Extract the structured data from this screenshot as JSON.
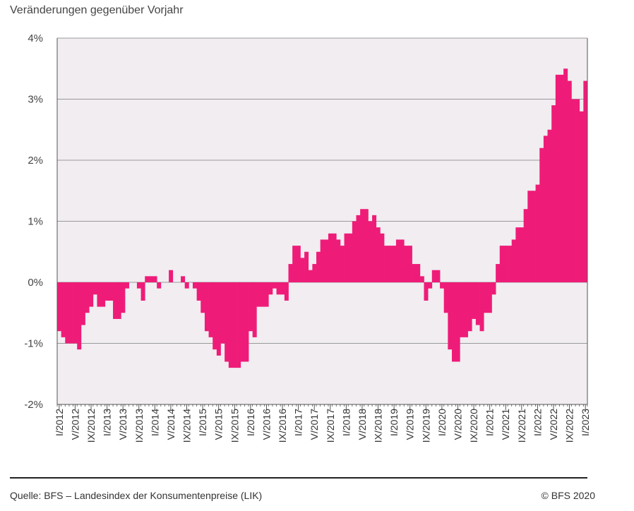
{
  "subtitle": "Veränderungen gegenüber Vorjahr",
  "source": "Quelle: BFS – Landesindex der Konsumentenpreise (LIK)",
  "copyright": "© BFS 2020",
  "colors": {
    "bar": "#EE1C78",
    "plot_background": "#F1EDF1",
    "grid": "#9A9A9A",
    "axis": "#555555"
  },
  "chart_data": {
    "type": "bar",
    "title": "",
    "xlabel": "",
    "ylabel": "Veränderungen gegenüber Vorjahr",
    "ylim": [
      -2,
      4
    ],
    "yticks": [
      {
        "value": 4,
        "label": "4%"
      },
      {
        "value": 3,
        "label": "3%"
      },
      {
        "value": 2,
        "label": "2%"
      },
      {
        "value": 1,
        "label": "1%"
      },
      {
        "value": 0,
        "label": "0%"
      },
      {
        "value": -1,
        "label": "-1%"
      },
      {
        "value": -2,
        "label": "-2%"
      }
    ],
    "grid": true,
    "period_start": "2012-01",
    "x_tick_labels": [
      "I/2012",
      "V/2012",
      "IX/2012",
      "I/2013",
      "V/2013",
      "IX/2013",
      "I/2014",
      "V/2014",
      "IX/2014",
      "I/2015",
      "V/2015",
      "IX/2015",
      "I/2016",
      "V/2016",
      "IX/2016",
      "I/2017",
      "V/2017",
      "IX/2017",
      "I/2018",
      "V/2018",
      "IX/2018",
      "I/2019",
      "V/2019",
      "IX/2019",
      "I/2020",
      "V/2020",
      "IX/2020",
      "I/2021",
      "V/2021",
      "IX/2021",
      "I/2022",
      "V/2022",
      "IX/2022",
      "I/2023"
    ],
    "values": [
      -0.8,
      -0.9,
      -1.0,
      -1.0,
      -1.0,
      -1.1,
      -0.7,
      -0.5,
      -0.4,
      -0.2,
      -0.4,
      -0.4,
      -0.3,
      -0.3,
      -0.6,
      -0.6,
      -0.5,
      -0.1,
      0.0,
      0.0,
      -0.1,
      -0.3,
      0.1,
      0.1,
      0.1,
      -0.1,
      0.0,
      0.0,
      0.2,
      0.0,
      0.0,
      0.1,
      -0.1,
      0.0,
      -0.1,
      -0.3,
      -0.5,
      -0.8,
      -0.9,
      -1.1,
      -1.2,
      -1.0,
      -1.3,
      -1.4,
      -1.4,
      -1.4,
      -1.3,
      -1.3,
      -0.8,
      -0.9,
      -0.4,
      -0.4,
      -0.4,
      -0.2,
      -0.1,
      -0.2,
      -0.2,
      -0.3,
      0.3,
      0.6,
      0.6,
      0.4,
      0.5,
      0.2,
      0.3,
      0.5,
      0.7,
      0.7,
      0.8,
      0.8,
      0.7,
      0.6,
      0.8,
      0.8,
      1.0,
      1.1,
      1.2,
      1.2,
      1.0,
      1.1,
      0.9,
      0.8,
      0.6,
      0.6,
      0.6,
      0.7,
      0.7,
      0.6,
      0.6,
      0.3,
      0.3,
      0.1,
      -0.3,
      -0.1,
      0.2,
      0.2,
      -0.1,
      -0.5,
      -1.1,
      -1.3,
      -1.3,
      -0.9,
      -0.9,
      -0.8,
      -0.6,
      -0.7,
      -0.8,
      -0.5,
      -0.5,
      -0.2,
      0.3,
      0.6,
      0.6,
      0.6,
      0.7,
      0.9,
      0.9,
      1.2,
      1.5,
      1.5,
      1.6,
      2.2,
      2.4,
      2.5,
      2.9,
      3.4,
      3.4,
      3.5,
      3.3,
      3.0,
      3.0,
      2.8,
      3.3
    ]
  }
}
